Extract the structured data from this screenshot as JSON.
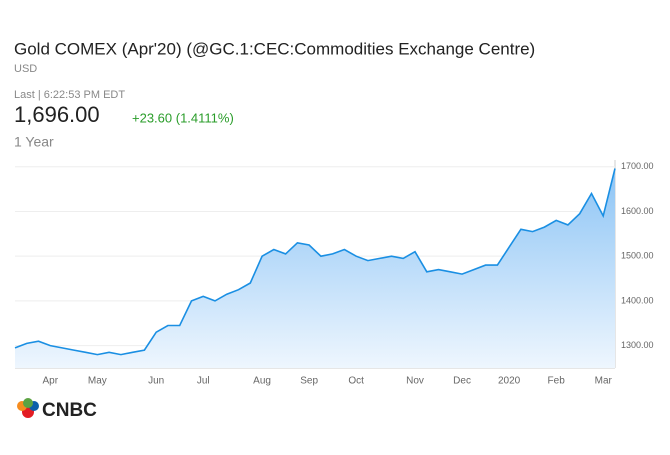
{
  "header": {
    "title": "Gold COMEX (Apr'20) (@GC.1:CEC:Commodities Exchange Centre)",
    "currency": "USD",
    "last": "Last | 6:22:53 PM EDT",
    "price": "1,696.00",
    "change": "+23.60 (1.4111%)",
    "range": "1 Year"
  },
  "logo": "CNBC",
  "chart_data": {
    "type": "line",
    "area": true,
    "color": "#1a8fe3",
    "grid": true,
    "categories": [
      null,
      null,
      null,
      "Apr",
      null,
      null,
      null,
      "May",
      null,
      null,
      null,
      null,
      "Jun",
      null,
      null,
      null,
      "Jul",
      null,
      null,
      null,
      null,
      "Aug",
      null,
      null,
      null,
      "Sep",
      null,
      null,
      null,
      "Oct",
      null,
      null,
      null,
      null,
      "Nov",
      null,
      null,
      null,
      "Dec",
      null,
      null,
      null,
      "2020",
      null,
      null,
      null,
      "Feb",
      null,
      null,
      null,
      "Mar",
      null
    ],
    "values": [
      1295,
      1305,
      1310,
      1300,
      1295,
      1290,
      1285,
      1280,
      1285,
      1280,
      1285,
      1290,
      1330,
      1345,
      1345,
      1400,
      1410,
      1400,
      1415,
      1425,
      1440,
      1500,
      1515,
      1505,
      1530,
      1525,
      1500,
      1505,
      1515,
      1500,
      1490,
      1495,
      1500,
      1495,
      1510,
      1465,
      1470,
      1465,
      1460,
      1470,
      1480,
      1480,
      1520,
      1560,
      1555,
      1565,
      1580,
      1570,
      1595,
      1640,
      1590,
      1696
    ],
    "ylim": [
      1250,
      1715
    ],
    "yticks": [
      {
        "value": 1300,
        "label": "1300.00"
      },
      {
        "value": 1400,
        "label": "1400.00"
      },
      {
        "value": 1500,
        "label": "1500.00"
      },
      {
        "value": 1600,
        "label": "1600.00"
      },
      {
        "value": 1700,
        "label": "1700.00"
      }
    ]
  }
}
